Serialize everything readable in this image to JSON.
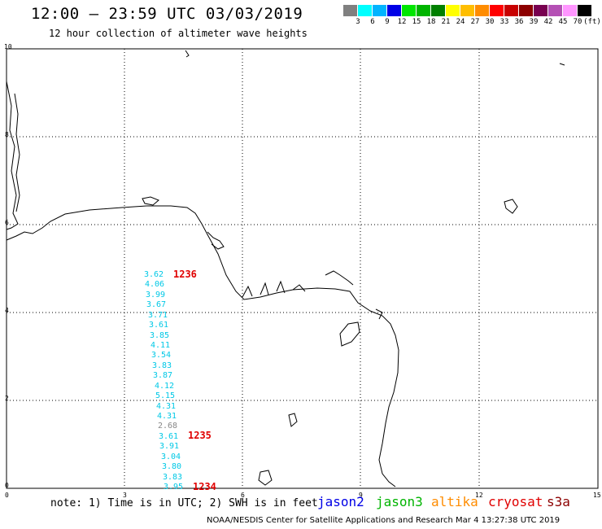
{
  "title": "12:00 – 23:59 UTC 03/03/2019",
  "subtitle": "12 hour collection of altimeter wave heights",
  "color_scale": {
    "unit": "(ft)",
    "colors": [
      "#808080",
      "#00ffff",
      "#00b4ff",
      "#0000e6",
      "#00e600",
      "#00b400",
      "#008000",
      "#ffff00",
      "#ffbe00",
      "#ff8c00",
      "#ff0000",
      "#c80000",
      "#8c0000",
      "#780050",
      "#b450b4",
      "#ff96ff",
      "#000000"
    ],
    "labels": [
      "3",
      "6",
      "9",
      "12",
      "15",
      "18",
      "21",
      "24",
      "27",
      "30",
      "33",
      "36",
      "39",
      "42",
      "45",
      "70"
    ]
  },
  "axes": {
    "y_ticks": [
      "0",
      "2",
      "4",
      "6",
      "8",
      "10"
    ],
    "x_ticks": [
      "0",
      "3",
      "6",
      "9",
      "12",
      "15"
    ]
  },
  "observations": [
    {
      "value": "3.62",
      "color": "cyan"
    },
    {
      "value": "4.06",
      "color": "cyan"
    },
    {
      "value": "3.99",
      "color": "cyan"
    },
    {
      "value": "3.67",
      "color": "cyan"
    },
    {
      "value": "3.71",
      "color": "cyan"
    },
    {
      "value": "3.61",
      "color": "cyan"
    },
    {
      "value": "3.85",
      "color": "cyan"
    },
    {
      "value": "4.11",
      "color": "cyan"
    },
    {
      "value": "3.54",
      "color": "cyan"
    },
    {
      "value": "3.83",
      "color": "cyan"
    },
    {
      "value": "3.87",
      "color": "cyan"
    },
    {
      "value": "4.12",
      "color": "cyan"
    },
    {
      "value": "5.15",
      "color": "cyan"
    },
    {
      "value": "4.31",
      "color": "cyan"
    },
    {
      "value": "4.31",
      "color": "cyan"
    },
    {
      "value": "2.68",
      "color": "gray"
    },
    {
      "value": "3.61",
      "color": "cyan"
    },
    {
      "value": "3.91",
      "color": "cyan"
    },
    {
      "value": "3.04",
      "color": "cyan"
    },
    {
      "value": "3.80",
      "color": "cyan"
    },
    {
      "value": "3.83",
      "color": "cyan"
    },
    {
      "value": "3.95",
      "color": "cyan"
    }
  ],
  "pass_times": [
    "1236",
    "1235",
    "1234"
  ],
  "note": "note: 1) Time is in UTC; 2) SWH is in feet",
  "satellites": [
    {
      "name": "jason2",
      "color": "#0000e6"
    },
    {
      "name": "jason3",
      "color": "#00b400"
    },
    {
      "name": "altika",
      "color": "#ff8c00"
    },
    {
      "name": "cryosat",
      "color": "#e00000"
    },
    {
      "name": "s3a",
      "color": "#8c0000"
    }
  ],
  "footer": "NOAA/NESDIS Center for Satellite Applications and Research   Mar  4 13:27:38 UTC 2019"
}
